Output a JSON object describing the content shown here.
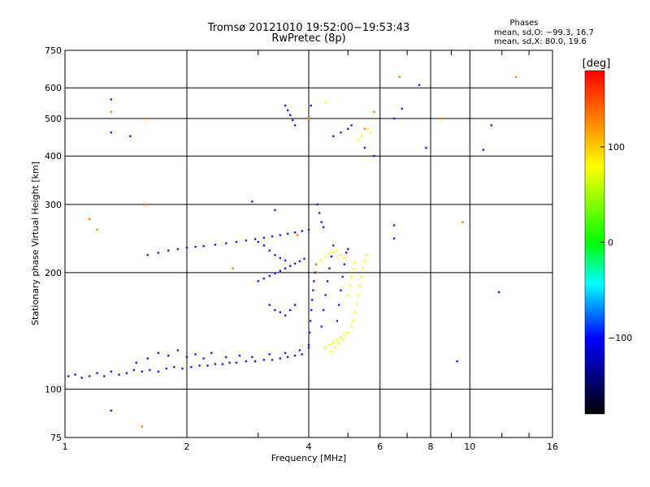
{
  "chart_data": {
    "type": "scatter",
    "title": "Tromsø 20121010 19:52:00−19:53:43",
    "subtitle": "RwPretec (8p)",
    "xlabel": "Frequency [MHz]",
    "ylabel": "Stationary phase Virtual Height [km]",
    "x_scale": "log",
    "y_scale": "log",
    "xlim": [
      1,
      16
    ],
    "ylim": [
      75,
      750
    ],
    "x_ticks": [
      1,
      2,
      4,
      6,
      8,
      10,
      16
    ],
    "x_tick_labels": [
      "1",
      "2",
      "4",
      "6",
      "8",
      "10",
      "16"
    ],
    "y_ticks": [
      75,
      100,
      200,
      300,
      400,
      500,
      600,
      750
    ],
    "y_tick_labels": [
      "75",
      "100",
      "200",
      "300",
      "400",
      "500",
      "600",
      "750"
    ],
    "grid": true,
    "legend": {
      "title": "Phases",
      "lines": [
        "mean, sd,O: −99.3, 16.7",
        "mean, sd,X:  80.0, 19.6"
      ]
    },
    "colorbar": {
      "label": "[deg]",
      "min": -180,
      "max": 180,
      "ticks": [
        100,
        0,
        -100
      ],
      "tick_labels": [
        "100",
        "0",
        "−100"
      ],
      "colors": [
        "#ff0000",
        "#ffff00",
        "#00ff00",
        "#00ffff",
        "#0000ff",
        "#000000"
      ]
    },
    "series": [
      {
        "mode": "O",
        "color": "#1a1aff",
        "points": [
          [
            1.02,
            108
          ],
          [
            1.06,
            109
          ],
          [
            1.1,
            107
          ],
          [
            1.15,
            108
          ],
          [
            1.2,
            110
          ],
          [
            1.25,
            108
          ],
          [
            1.3,
            111
          ],
          [
            1.36,
            109
          ],
          [
            1.42,
            110
          ],
          [
            1.48,
            112
          ],
          [
            1.55,
            111
          ],
          [
            1.62,
            112
          ],
          [
            1.7,
            111
          ],
          [
            1.78,
            113
          ],
          [
            1.86,
            114
          ],
          [
            1.95,
            113
          ],
          [
            2.05,
            114
          ],
          [
            2.15,
            115
          ],
          [
            2.25,
            115
          ],
          [
            2.35,
            116
          ],
          [
            2.45,
            116
          ],
          [
            2.55,
            117
          ],
          [
            2.65,
            117
          ],
          [
            2.8,
            118
          ],
          [
            2.95,
            118
          ],
          [
            3.1,
            119
          ],
          [
            3.25,
            119
          ],
          [
            3.4,
            120
          ],
          [
            3.55,
            121
          ],
          [
            3.7,
            122
          ],
          [
            3.85,
            123
          ],
          [
            1.5,
            117
          ],
          [
            1.6,
            120
          ],
          [
            1.7,
            124
          ],
          [
            1.8,
            122
          ],
          [
            1.9,
            126
          ],
          [
            2.0,
            121
          ],
          [
            2.1,
            123
          ],
          [
            2.2,
            120
          ],
          [
            2.3,
            124
          ],
          [
            2.5,
            121
          ],
          [
            2.7,
            122
          ],
          [
            2.9,
            121
          ],
          [
            3.2,
            123
          ],
          [
            3.5,
            124
          ],
          [
            3.8,
            126
          ],
          [
            4.0,
            128
          ],
          [
            1.6,
            222
          ],
          [
            1.7,
            225
          ],
          [
            1.8,
            228
          ],
          [
            1.9,
            230
          ],
          [
            2.0,
            232
          ],
          [
            2.1,
            233
          ],
          [
            2.2,
            234
          ],
          [
            2.35,
            236
          ],
          [
            2.5,
            238
          ],
          [
            2.65,
            240
          ],
          [
            2.8,
            242
          ],
          [
            2.95,
            244
          ],
          [
            3.1,
            246
          ],
          [
            3.25,
            248
          ],
          [
            3.4,
            250
          ],
          [
            3.55,
            252
          ],
          [
            3.7,
            254
          ],
          [
            3.85,
            256
          ],
          [
            4.0,
            258
          ],
          [
            3.0,
            190
          ],
          [
            3.1,
            193
          ],
          [
            3.2,
            196
          ],
          [
            3.3,
            199
          ],
          [
            3.4,
            202
          ],
          [
            3.5,
            205
          ],
          [
            3.6,
            208
          ],
          [
            3.7,
            211
          ],
          [
            3.8,
            214
          ],
          [
            3.9,
            217
          ],
          [
            3.2,
            165
          ],
          [
            3.3,
            160
          ],
          [
            3.4,
            158
          ],
          [
            3.5,
            155
          ],
          [
            3.6,
            160
          ],
          [
            3.7,
            165
          ],
          [
            3.0,
            240
          ],
          [
            3.1,
            235
          ],
          [
            3.2,
            228
          ],
          [
            3.3,
            222
          ],
          [
            3.4,
            218
          ],
          [
            3.5,
            215
          ],
          [
            4.0,
            130
          ],
          [
            4.02,
            140
          ],
          [
            4.04,
            150
          ],
          [
            4.06,
            160
          ],
          [
            4.08,
            170
          ],
          [
            4.1,
            180
          ],
          [
            4.12,
            190
          ],
          [
            4.15,
            200
          ],
          [
            4.18,
            210
          ],
          [
            4.3,
            145
          ],
          [
            4.35,
            160
          ],
          [
            4.4,
            175
          ],
          [
            4.45,
            190
          ],
          [
            4.5,
            205
          ],
          [
            4.55,
            220
          ],
          [
            4.6,
            235
          ],
          [
            4.7,
            150
          ],
          [
            4.75,
            165
          ],
          [
            4.8,
            180
          ],
          [
            4.85,
            195
          ],
          [
            4.9,
            210
          ],
          [
            4.95,
            225
          ],
          [
            5.0,
            230
          ],
          [
            4.2,
            300
          ],
          [
            4.25,
            285
          ],
          [
            4.3,
            270
          ],
          [
            4.35,
            262
          ],
          [
            3.5,
            540
          ],
          [
            3.55,
            525
          ],
          [
            3.6,
            510
          ],
          [
            3.65,
            495
          ],
          [
            3.7,
            480
          ],
          [
            4.6,
            450
          ],
          [
            4.8,
            460
          ],
          [
            5.0,
            470
          ],
          [
            5.1,
            480
          ],
          [
            1.3,
            460
          ],
          [
            1.3,
            560
          ],
          [
            1.45,
            450
          ],
          [
            1.3,
            88
          ],
          [
            2.9,
            305
          ],
          [
            3.3,
            290
          ],
          [
            4.05,
            540
          ],
          [
            5.5,
            420
          ],
          [
            5.8,
            400
          ],
          [
            6.5,
            500
          ],
          [
            6.5,
            245
          ],
          [
            6.5,
            265
          ],
          [
            6.8,
            530
          ],
          [
            7.5,
            610
          ],
          [
            7.8,
            420
          ],
          [
            9.3,
            118
          ],
          [
            10.8,
            415
          ],
          [
            11.3,
            480
          ],
          [
            11.8,
            178
          ]
        ]
      },
      {
        "mode": "X",
        "color": "#ffff00",
        "points": [
          [
            4.4,
            128
          ],
          [
            4.5,
            130
          ],
          [
            4.6,
            132
          ],
          [
            4.7,
            134
          ],
          [
            4.8,
            136
          ],
          [
            4.9,
            138
          ],
          [
            5.0,
            140
          ],
          [
            5.1,
            145
          ],
          [
            5.15,
            150
          ],
          [
            5.2,
            158
          ],
          [
            5.25,
            166
          ],
          [
            5.3,
            175
          ],
          [
            5.35,
            185
          ],
          [
            5.4,
            195
          ],
          [
            5.45,
            205
          ],
          [
            5.5,
            215
          ],
          [
            5.55,
            222
          ],
          [
            4.2,
            210
          ],
          [
            4.3,
            215
          ],
          [
            4.4,
            220
          ],
          [
            4.5,
            224
          ],
          [
            4.6,
            226
          ],
          [
            4.7,
            228
          ],
          [
            4.8,
            222
          ],
          [
            4.9,
            218
          ],
          [
            5.0,
            175
          ],
          [
            5.05,
            185
          ],
          [
            5.1,
            195
          ],
          [
            5.15,
            205
          ],
          [
            5.2,
            212
          ],
          [
            4.55,
            125
          ],
          [
            4.65,
            128
          ],
          [
            4.75,
            131
          ],
          [
            4.85,
            134
          ],
          [
            5.3,
            440
          ],
          [
            5.4,
            450
          ],
          [
            5.6,
            470
          ],
          [
            5.7,
            460
          ],
          [
            4.4,
            550
          ]
        ]
      },
      {
        "mode": "mixed",
        "color": "#ff8000",
        "points": [
          [
            1.15,
            275
          ],
          [
            1.3,
            520
          ],
          [
            1.58,
            500
          ],
          [
            1.58,
            300
          ],
          [
            2.6,
            205
          ],
          [
            3.75,
            250
          ],
          [
            4.0,
            500
          ],
          [
            4.2,
            200
          ],
          [
            5.8,
            520
          ],
          [
            5.5,
            470
          ],
          [
            6.7,
            640
          ],
          [
            8.5,
            500
          ],
          [
            9.6,
            270
          ],
          [
            13.0,
            640
          ],
          [
            1.55,
            80
          ],
          [
            1.2,
            258
          ]
        ]
      }
    ]
  }
}
